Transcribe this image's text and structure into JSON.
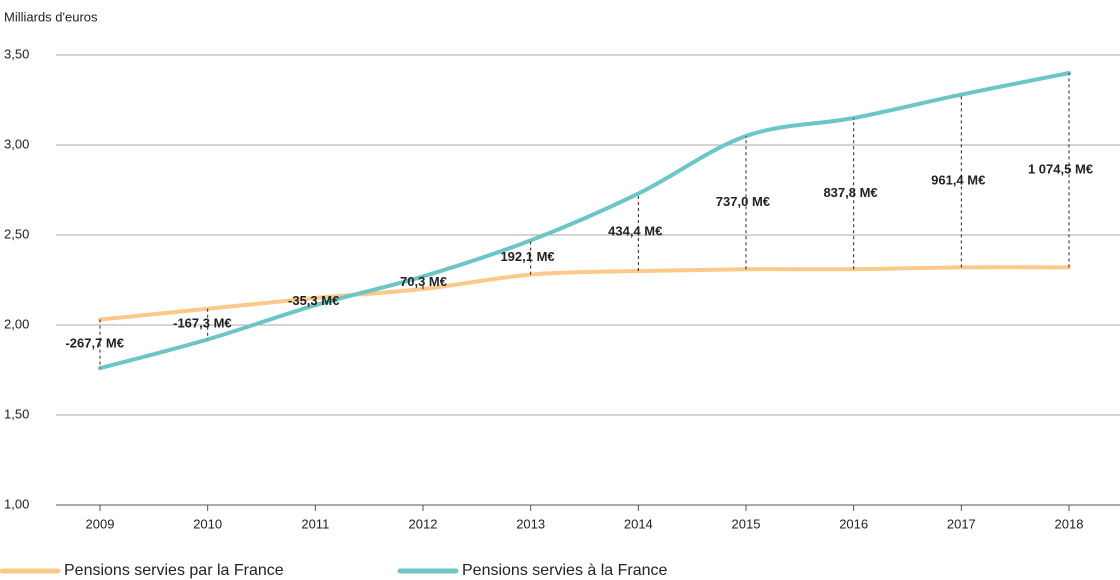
{
  "chart_data": {
    "type": "line",
    "y_axis_label": "Milliards d'euros",
    "categories": [
      "2009",
      "2010",
      "2011",
      "2012",
      "2013",
      "2014",
      "2015",
      "2016",
      "2017",
      "2018"
    ],
    "series": [
      {
        "name": "Pensions servies par la France",
        "color": "#fbc98a",
        "values": [
          2.03,
          2.09,
          2.15,
          2.2,
          2.28,
          2.3,
          2.31,
          2.31,
          2.32,
          2.32
        ]
      },
      {
        "name": "Pensions servies à la France",
        "color": "#6cc6c6",
        "values": [
          1.76,
          1.92,
          2.11,
          2.27,
          2.47,
          2.73,
          3.05,
          3.15,
          3.28,
          3.4
        ]
      }
    ],
    "annotations": [
      "-267,7 M€",
      "-167,3 M€",
      "-35,3 M€",
      "70,3 M€",
      "192,1 M€",
      "434,4 M€",
      "737,0 M€",
      "837,8 M€",
      "961,4 M€",
      "1 074,5 M€"
    ],
    "ylim": [
      1,
      3.5
    ],
    "yticks": [
      {
        "value": 1,
        "label": "1,00"
      },
      {
        "value": 1.5,
        "label": "1,50"
      },
      {
        "value": 2,
        "label": "2,00"
      },
      {
        "value": 2.5,
        "label": "2,50"
      },
      {
        "value": 3,
        "label": "3,00"
      },
      {
        "value": 3.5,
        "label": "3,50"
      }
    ],
    "grid": true,
    "legend": "bottom"
  }
}
